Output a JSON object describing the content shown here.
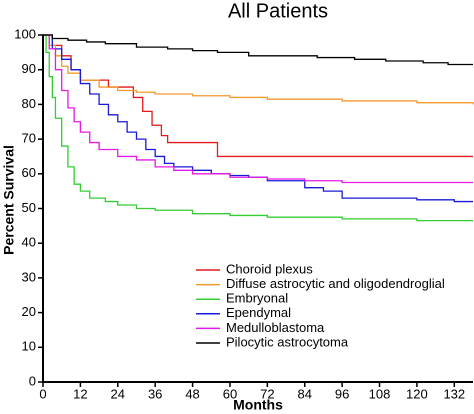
{
  "chart_data": {
    "type": "step-line",
    "title": "All Patients",
    "x_label": "Months",
    "y_label": "Percent Survival",
    "xlim": [
      0,
      138
    ],
    "ylim": [
      0,
      100
    ],
    "xticks": [
      0,
      12,
      24,
      36,
      48,
      60,
      72,
      84,
      96,
      108,
      120,
      132
    ],
    "yticks": [
      0,
      10,
      20,
      30,
      40,
      50,
      60,
      70,
      80,
      90,
      100
    ],
    "series": [
      {
        "name": "Choroid plexus",
        "color": "#e31a1c",
        "x": [
          0,
          3,
          6,
          9,
          12,
          18,
          21,
          27,
          29,
          32,
          35,
          38,
          40,
          56,
          138
        ],
        "values": [
          100,
          97,
          94,
          90,
          87,
          87,
          85,
          85,
          82,
          78,
          74,
          71,
          69,
          65,
          65
        ]
      },
      {
        "name": "Diffuse astrocytic and oligodendroglial",
        "color": "#f39a2d",
        "x": [
          0,
          2,
          4,
          6,
          8,
          12,
          18,
          24,
          30,
          36,
          48,
          60,
          72,
          96,
          120,
          138
        ],
        "values": [
          100,
          97,
          94,
          91,
          89,
          87,
          85,
          84,
          83.5,
          83,
          82.5,
          82,
          81.5,
          81,
          80.5,
          80
        ]
      },
      {
        "name": "Embryonal",
        "color": "#33cc33",
        "x": [
          0,
          1,
          2,
          3,
          4,
          6,
          8,
          10,
          12,
          15,
          20,
          24,
          30,
          36,
          48,
          60,
          72,
          96,
          120,
          138
        ],
        "values": [
          100,
          95,
          88,
          82,
          76,
          68,
          62,
          57,
          55,
          53,
          52,
          51,
          50,
          49.5,
          48.5,
          48,
          47.5,
          47,
          46.5,
          46.5
        ]
      },
      {
        "name": "Ependymal",
        "color": "#1a1ad6",
        "x": [
          0,
          3,
          6,
          9,
          12,
          15,
          18,
          21,
          24,
          27,
          30,
          33,
          36,
          39,
          42,
          48,
          54,
          60,
          66,
          72,
          84,
          90,
          96,
          120,
          132,
          138
        ],
        "values": [
          100,
          96,
          93,
          90,
          86,
          83,
          80,
          77,
          75,
          72,
          70,
          67,
          65,
          63,
          62,
          61,
          60,
          59.5,
          59,
          58,
          56,
          55,
          53,
          52.5,
          52,
          52
        ]
      },
      {
        "name": "Medulloblastoma",
        "color": "#e619e6",
        "x": [
          0,
          2,
          4,
          6,
          8,
          10,
          12,
          15,
          18,
          24,
          30,
          36,
          42,
          48,
          60,
          72,
          84,
          96,
          138
        ],
        "values": [
          100,
          96,
          90,
          84,
          79,
          75,
          72,
          69,
          67,
          65,
          64,
          62,
          61,
          60,
          59,
          58.5,
          58,
          57.5,
          57.5
        ]
      },
      {
        "name": "Pilocytic astrocytoma",
        "color": "#000000",
        "x": [
          0,
          3,
          8,
          14,
          20,
          30,
          40,
          48,
          56,
          66,
          88,
          100,
          110,
          122,
          130,
          138
        ],
        "values": [
          100,
          99,
          98.5,
          98,
          97.5,
          96.5,
          96,
          95.5,
          95,
          94,
          93.5,
          93,
          92.5,
          92,
          91.5,
          91.5
        ]
      }
    ]
  }
}
